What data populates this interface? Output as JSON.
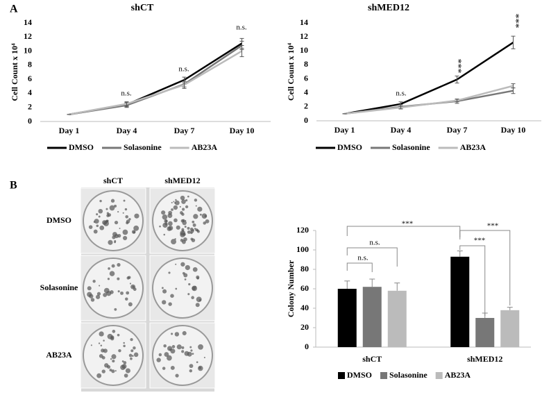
{
  "panel_labels": [
    "A",
    "B"
  ],
  "plates": {
    "columns": [
      "shCT",
      "shMED12"
    ],
    "rows": [
      "DMSO",
      "Solasonine",
      "AB23A"
    ]
  },
  "chart_data": [
    {
      "type": "line",
      "title": "shCT",
      "y_label": "Cell Count x 10⁴",
      "categories": [
        "Day 1",
        "Day 4",
        "Day 7",
        "Day 10"
      ],
      "series": [
        {
          "name": "DMSO",
          "color": "#000000",
          "values": [
            1,
            2.4,
            5.9,
            11.1
          ],
          "errors": [
            0,
            0.3,
            0.4,
            0.7
          ]
        },
        {
          "name": "Solasonine",
          "color": "#777777",
          "values": [
            1,
            2.3,
            5.3,
            10.8
          ],
          "errors": [
            0,
            0.3,
            0.4,
            0.6
          ]
        },
        {
          "name": "AB23A",
          "color": "#bbbbbb",
          "values": [
            1,
            2.5,
            5.2,
            10.0
          ],
          "errors": [
            0,
            0.3,
            0.5,
            0.8
          ]
        }
      ],
      "annotations": [
        "n.s.",
        "n.s.",
        "n.s."
      ],
      "ylim": [
        0,
        14
      ],
      "yticks": [
        0,
        2,
        4,
        6,
        8,
        10,
        12,
        14
      ],
      "grid": false
    },
    {
      "type": "line",
      "title": "shMED12",
      "y_label": "Cell Count x 10⁴",
      "categories": [
        "Day 1",
        "Day 4",
        "Day 7",
        "Day 10"
      ],
      "series": [
        {
          "name": "DMSO",
          "color": "#000000",
          "values": [
            1,
            2.4,
            5.9,
            11.2
          ],
          "errors": [
            0,
            0.3,
            0.5,
            0.9
          ]
        },
        {
          "name": "Solasonine",
          "color": "#777777",
          "values": [
            1,
            2.0,
            2.8,
            4.3
          ],
          "errors": [
            0,
            0.3,
            0.3,
            0.4
          ]
        },
        {
          "name": "AB23A",
          "color": "#bbbbbb",
          "values": [
            1,
            1.9,
            2.9,
            5.0
          ],
          "errors": [
            0,
            0.2,
            0.2,
            0.3
          ]
        }
      ],
      "annotations": [
        "n.s.",
        "***",
        "***"
      ],
      "ylim": [
        0,
        14
      ],
      "yticks": [
        0,
        2,
        4,
        6,
        8,
        10,
        12,
        14
      ],
      "grid": false
    },
    {
      "type": "bar",
      "y_label": "Colony Number",
      "categories": [
        "shCT",
        "shMED12"
      ],
      "series": [
        {
          "name": "DMSO",
          "color": "#000000",
          "values": [
            60,
            93
          ],
          "errors": [
            8,
            6
          ]
        },
        {
          "name": "Solasonine",
          "color": "#777777",
          "values": [
            62,
            30
          ],
          "errors": [
            8,
            5
          ]
        },
        {
          "name": "AB23A",
          "color": "#bbbbbb",
          "values": [
            58,
            38
          ],
          "errors": [
            8,
            3
          ]
        }
      ],
      "annotations": [
        "***",
        "n.s.",
        "n.s.",
        "***",
        "***"
      ],
      "ylim": [
        0,
        120
      ],
      "yticks": [
        0,
        20,
        40,
        60,
        80,
        100,
        120
      ],
      "grid": false
    }
  ]
}
